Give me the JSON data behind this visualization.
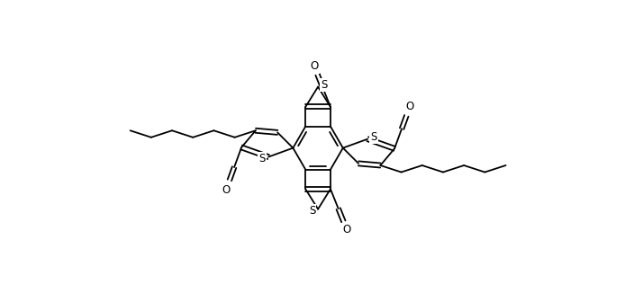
{
  "bg_color": "#ffffff",
  "line_color": "#000000",
  "line_width": 1.3,
  "fig_width": 7.04,
  "fig_height": 3.26,
  "dpi": 100,
  "xlim": [
    0,
    14
  ],
  "ylim": [
    0,
    6.52
  ]
}
